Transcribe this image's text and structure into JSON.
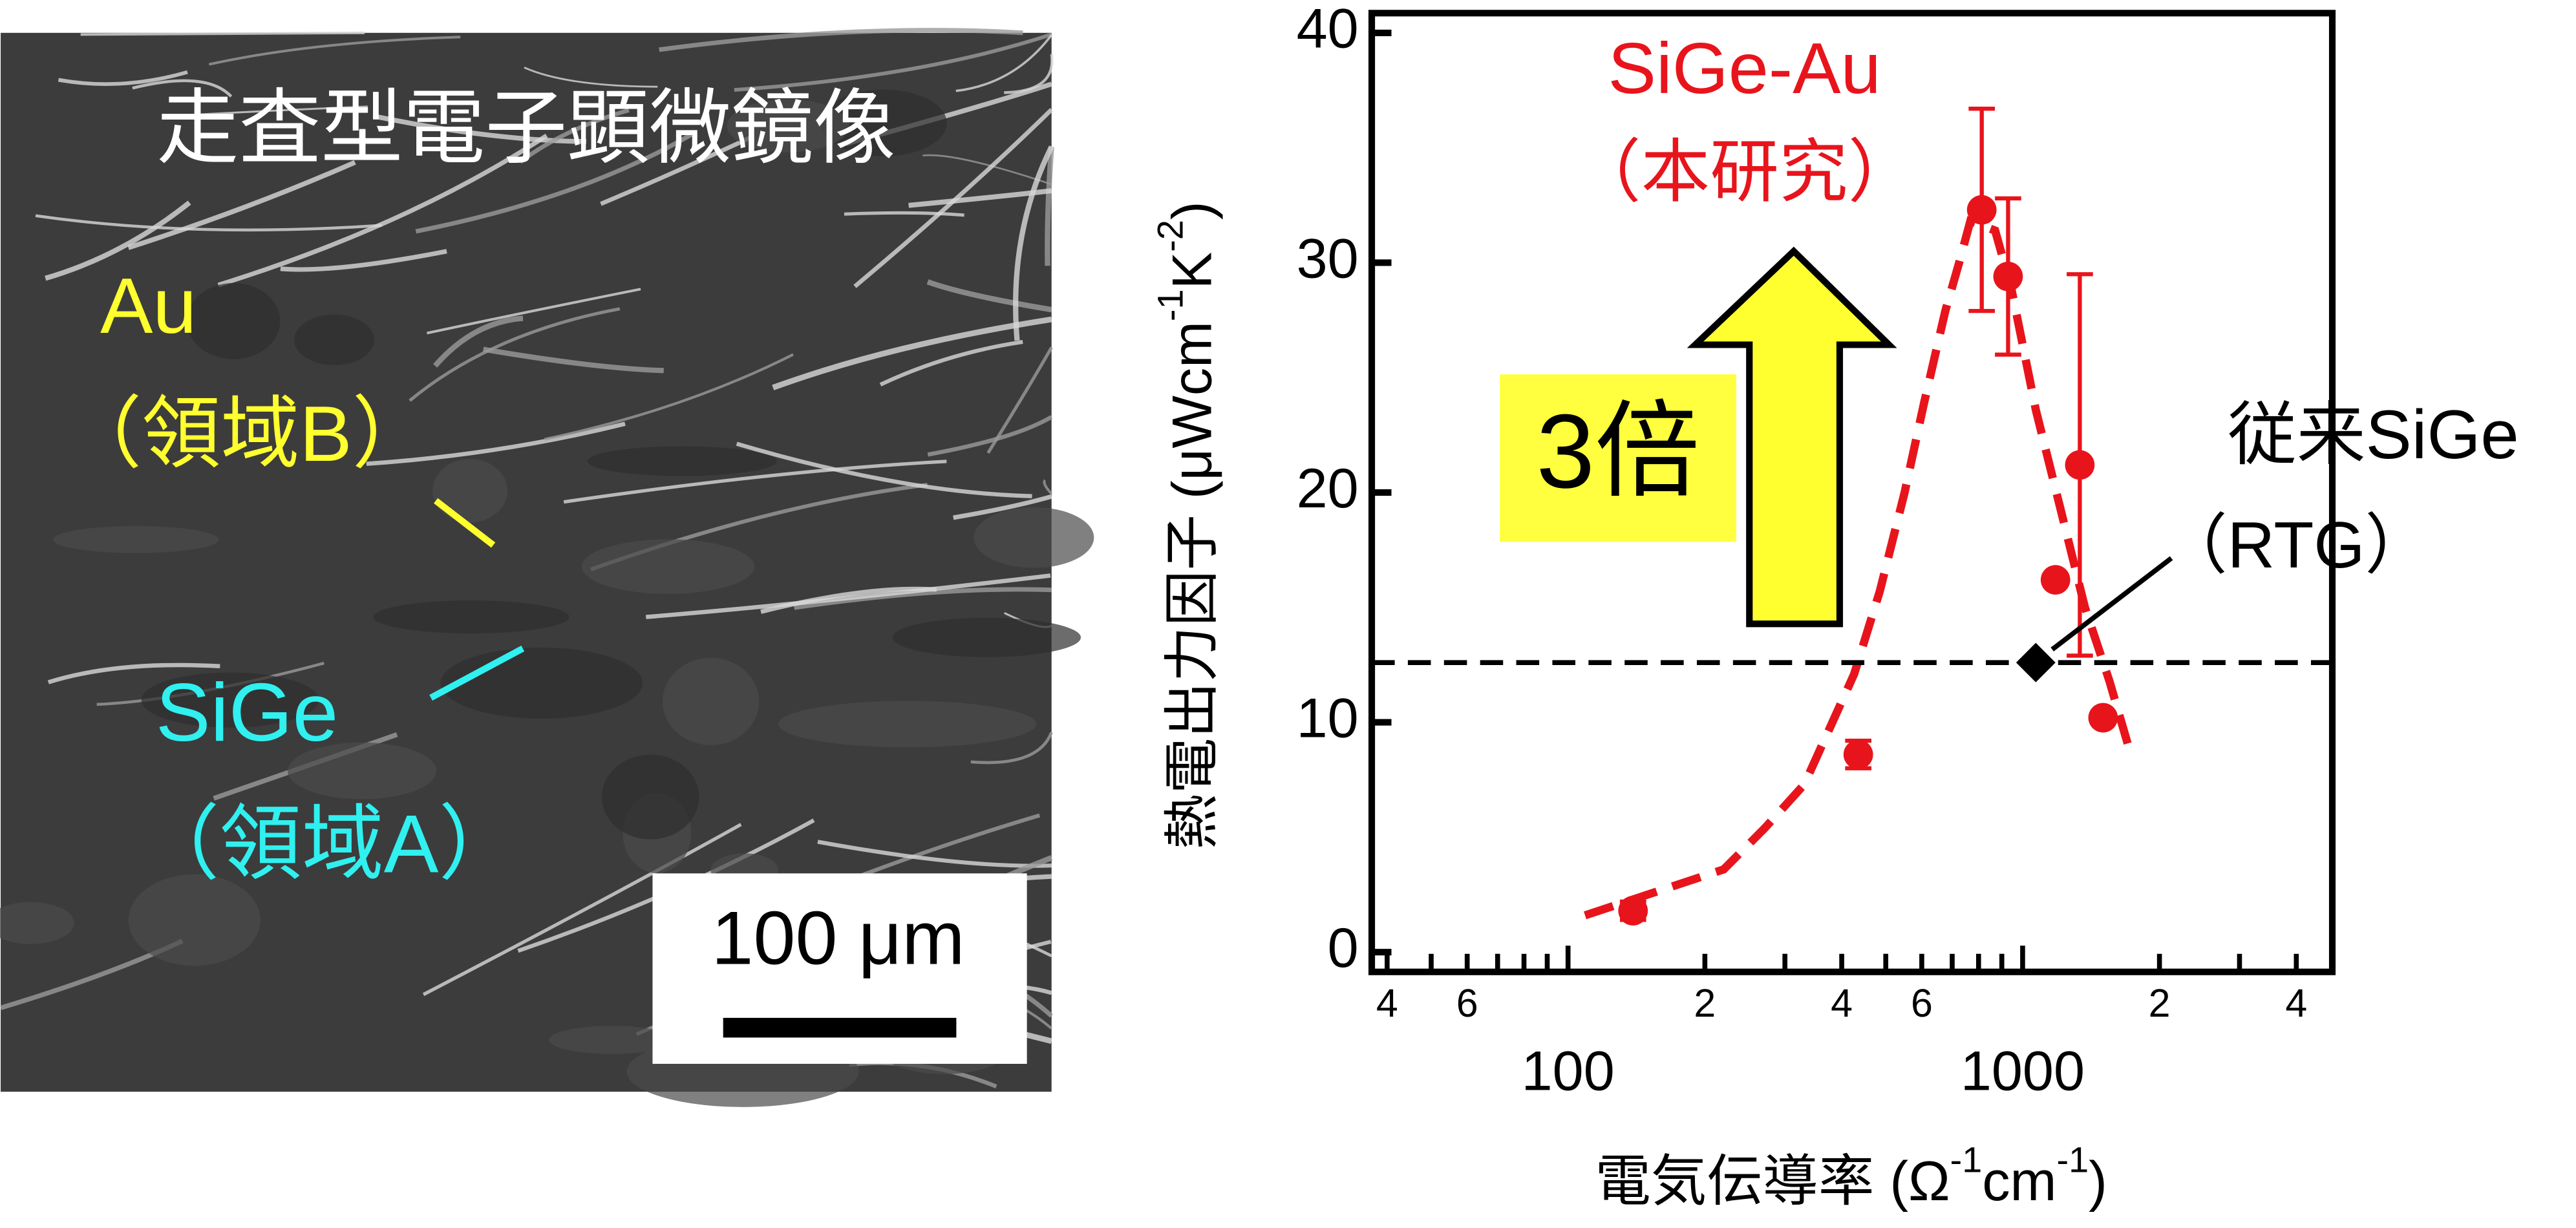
{
  "image_panel": {
    "title": "走査型電子顕微鏡像",
    "label_au": "Au",
    "label_au_region": "（領域B）",
    "label_sige": "SiGe",
    "label_sige_region": "（領域A）",
    "scale_bar": "100 μm"
  },
  "chart_data": {
    "type": "scatter",
    "xscale": "log",
    "xlim": [
      37,
      4800
    ],
    "ylim": [
      -0.86,
      40.86
    ],
    "yticks": [
      0,
      10,
      20,
      30,
      40
    ],
    "xticks": [
      {
        "value": 40,
        "label": "4"
      },
      {
        "value": 60,
        "label": "6"
      },
      100,
      {
        "value": 200,
        "label": "2"
      },
      {
        "value": 400,
        "label": "4"
      },
      {
        "value": 600,
        "label": "6"
      },
      1000,
      {
        "value": 2000,
        "label": "2"
      },
      {
        "value": 4000,
        "label": "4"
      }
    ],
    "xminor": [
      50,
      70,
      80,
      90,
      300,
      500,
      700,
      800,
      900,
      3000
    ],
    "xlabel": [
      "電気伝導率 (Ω",
      "-1",
      "cm",
      "-1",
      ")"
    ],
    "ylabel": [
      "熱電出力因子 (μWcm",
      "-1",
      "K",
      "-2",
      ")"
    ],
    "series": [
      {
        "name": "SiGe-Au",
        "note": "（本研究）",
        "color": "#e8141c",
        "x": [
          139,
          435,
          813,
          929,
          1181,
          1336,
          1503
        ],
        "values": [
          1.8,
          8.6,
          32.3,
          29.4,
          16.2,
          21.2,
          10.2
        ],
        "errors": [
          0.4,
          0.6,
          4.4,
          3.4,
          0,
          8.3,
          0
        ]
      },
      {
        "name": "従来SiGe",
        "note": "（RTG）",
        "color": "#000000",
        "x": [
          1069
        ],
        "values": [
          12.6
        ]
      }
    ],
    "fit": {
      "color": "#e8141c",
      "x": [
        109,
        220,
        271,
        331,
        426,
        485,
        550,
        607,
        676,
        725,
        767,
        870,
        944,
        1069,
        1211,
        1371,
        1552,
        1730
      ],
      "values": [
        1.6,
        3.6,
        5.4,
        7.3,
        12.1,
        15.7,
        20,
        23.9,
        27.9,
        30,
        31.8,
        31.4,
        28.9,
        23.6,
        19.3,
        15,
        11.8,
        8.6
      ]
    },
    "annotation": "3倍"
  }
}
